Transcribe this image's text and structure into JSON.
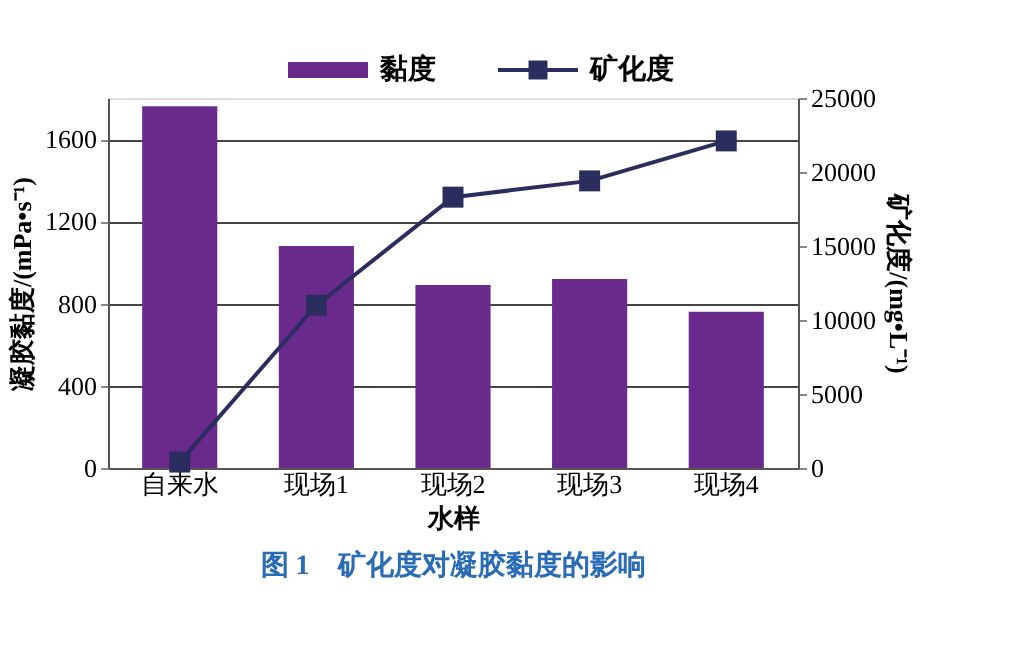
{
  "chart_data": {
    "type": "bar",
    "categories": [
      "自来水",
      "现场1",
      "现场2",
      "现场3",
      "现场4"
    ],
    "series": [
      {
        "name": "黏度",
        "color": "#6a2a8c",
        "values": [
          1760,
          1080,
          890,
          920,
          760
        ]
      },
      {
        "name": "矿化度",
        "type": "line",
        "axis": "y2",
        "color": "#2b2d5e",
        "marker": "square",
        "values": [
          400,
          11000,
          18300,
          19400,
          22100
        ]
      }
    ],
    "xlabel": "水样",
    "ylabel": "凝胶黏度/(mPa•s⁻¹)",
    "y2label": "矿化度/(mg•L⁻¹)",
    "ylim": [
      0,
      1800
    ],
    "yticks": [
      0,
      400,
      800,
      1200,
      1600
    ],
    "y2lim": [
      0,
      25000
    ],
    "y2ticks": [
      0,
      5000,
      10000,
      15000,
      20000,
      25000
    ],
    "grid": "y",
    "legend": "top",
    "annotations": [
      "图 1　矿化度对凝胶黏度的影响"
    ]
  }
}
